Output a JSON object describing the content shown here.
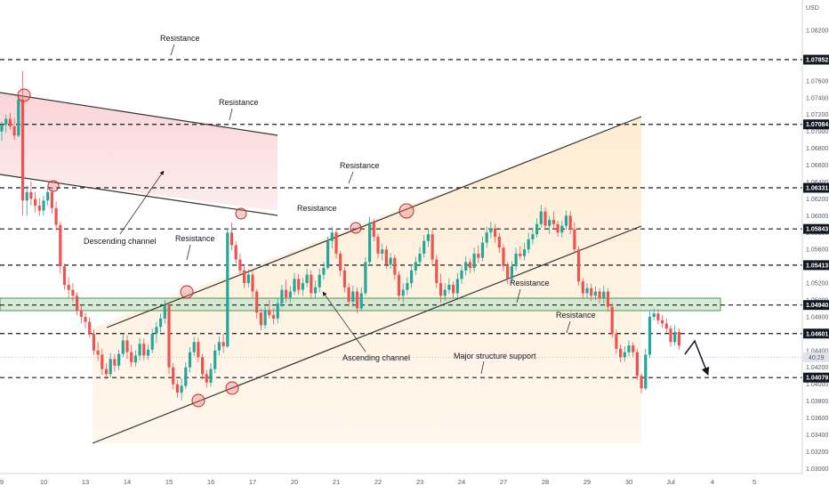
{
  "chart_data": {
    "type": "candlestick",
    "axis": {
      "currency": "USD",
      "y_ticks": [
        "1.08200",
        "1.07600",
        "1.07400",
        "1.07200",
        "1.07000",
        "1.06800",
        "1.06600",
        "1.06400",
        "1.06200",
        "1.06000",
        "1.05800",
        "1.05600",
        "1.05400",
        "1.05200",
        "1.05000",
        "1.04800",
        "1.04400",
        "1.04200",
        "1.04000",
        "1.03800",
        "1.03600",
        "1.03400",
        "1.03200",
        "1.03000"
      ],
      "y_tick_values": [
        1.082,
        1.076,
        1.074,
        1.072,
        1.07,
        1.068,
        1.066,
        1.064,
        1.062,
        1.06,
        1.058,
        1.056,
        1.054,
        1.052,
        1.05,
        1.048,
        1.044,
        1.042,
        1.04,
        1.038,
        1.036,
        1.034,
        1.032,
        1.03
      ],
      "ylim": [
        1.0294,
        1.0856
      ],
      "x_ticks": [
        "9",
        "10",
        "13",
        "14",
        "15",
        "16",
        "17",
        "20",
        "21",
        "22",
        "23",
        "24",
        "27",
        "28",
        "29",
        "30",
        "Jul",
        "4",
        "5"
      ],
      "x_tick_index": [
        0,
        10,
        20,
        30,
        40,
        50,
        60,
        70,
        80,
        90,
        100,
        110,
        120,
        130,
        140,
        150,
        160,
        170,
        180
      ],
      "index_range": [
        0,
        196
      ],
      "grid": false
    },
    "level_boxes": [
      {
        "label": "1.07852",
        "value": 1.07852
      },
      {
        "label": "1.07084",
        "value": 1.07084
      },
      {
        "label": "1.06331",
        "value": 1.06331
      },
      {
        "label": "1.05843",
        "value": 1.05843
      },
      {
        "label": "1.05413",
        "value": 1.05413
      },
      {
        "label": "1.04940",
        "value": 1.0494
      },
      {
        "label": "1.04601",
        "value": 1.04601
      },
      {
        "label": "1.04079",
        "value": 1.04079
      }
    ],
    "countdown": "40:29",
    "current_price": 1.0432,
    "support_zone": [
      1.0487,
      1.0503
    ],
    "annotations": [
      {
        "text": "Resistance",
        "value": 1.0818,
        "index": 40
      },
      {
        "text": "Resistance",
        "value": 1.073,
        "index": 56
      },
      {
        "text": "Resistance",
        "value": 1.0655,
        "index": 84
      },
      {
        "text": "Resistance",
        "value": 1.0604,
        "index": 74
      },
      {
        "text": "Resistance",
        "value": 1.0565,
        "index": 45
      },
      {
        "text": "Resistance",
        "value": 1.0518,
        "index": 127
      },
      {
        "text": "Resistance",
        "value": 1.0467,
        "index": 136
      },
      {
        "text": "Descending channel",
        "value": 1.0563,
        "index": 26
      },
      {
        "text": "Ascending channel",
        "value": 1.042,
        "index": 87
      },
      {
        "text": "Major structure support",
        "value": 1.0427,
        "index": 116
      }
    ],
    "candles": [
      [
        1.07,
        1.0712,
        1.0689,
        1.0708
      ],
      [
        1.0708,
        1.072,
        1.0698,
        1.0715
      ],
      [
        1.0715,
        1.0722,
        1.0702,
        1.0706
      ],
      [
        1.0706,
        1.0716,
        1.069,
        1.0695
      ],
      [
        1.0695,
        1.0742,
        1.0693,
        1.0738
      ],
      [
        1.0738,
        1.0772,
        1.06,
        1.0618
      ],
      [
        1.0618,
        1.0636,
        1.06,
        1.0628
      ],
      [
        1.0628,
        1.0641,
        1.0612,
        1.062
      ],
      [
        1.062,
        1.0628,
        1.0604,
        1.0612
      ],
      [
        1.0612,
        1.0621,
        1.06,
        1.0606
      ],
      [
        1.0606,
        1.0624,
        1.06,
        1.0618
      ],
      [
        1.0618,
        1.0635,
        1.0612,
        1.0628
      ],
      [
        1.0628,
        1.0634,
        1.0602,
        1.0609
      ],
      [
        1.0609,
        1.0617,
        1.0582,
        1.0589
      ],
      [
        1.0589,
        1.0593,
        1.0531,
        1.054
      ],
      [
        1.054,
        1.0543,
        1.0512,
        1.0518
      ],
      [
        1.0518,
        1.0527,
        1.0503,
        1.0512
      ],
      [
        1.0512,
        1.052,
        1.0498,
        1.0505
      ],
      [
        1.0505,
        1.0509,
        1.0482,
        1.0488
      ],
      [
        1.0488,
        1.0494,
        1.0472,
        1.048
      ],
      [
        1.048,
        1.0485,
        1.0466,
        1.0474
      ],
      [
        1.0474,
        1.048,
        1.0455,
        1.046
      ],
      [
        1.046,
        1.0465,
        1.0435,
        1.044
      ],
      [
        1.044,
        1.045,
        1.0428,
        1.0435
      ],
      [
        1.0435,
        1.0442,
        1.0411,
        1.0418
      ],
      [
        1.0418,
        1.0425,
        1.0406,
        1.0412
      ],
      [
        1.0412,
        1.0437,
        1.0408,
        1.043
      ],
      [
        1.043,
        1.0436,
        1.0415,
        1.0422
      ],
      [
        1.0422,
        1.0441,
        1.0417,
        1.0436
      ],
      [
        1.0436,
        1.0459,
        1.0432,
        1.0452
      ],
      [
        1.0452,
        1.0458,
        1.043,
        1.0438
      ],
      [
        1.0438,
        1.0447,
        1.042,
        1.0426
      ],
      [
        1.0426,
        1.044,
        1.0421,
        1.0434
      ],
      [
        1.0434,
        1.0455,
        1.0428,
        1.0448
      ],
      [
        1.0448,
        1.0454,
        1.0428,
        1.0434
      ],
      [
        1.0434,
        1.0447,
        1.0429,
        1.0441
      ],
      [
        1.0441,
        1.0466,
        1.0437,
        1.046
      ],
      [
        1.046,
        1.0474,
        1.0449,
        1.0468
      ],
      [
        1.0468,
        1.0484,
        1.0462,
        1.0478
      ],
      [
        1.0478,
        1.05,
        1.0472,
        1.0494
      ],
      [
        1.0494,
        1.0497,
        1.0412,
        1.042
      ],
      [
        1.042,
        1.0425,
        1.0394,
        1.04
      ],
      [
        1.04,
        1.0405,
        1.0384,
        1.039
      ],
      [
        1.039,
        1.0407,
        1.0381,
        1.0398
      ],
      [
        1.0398,
        1.0426,
        1.0394,
        1.042
      ],
      [
        1.042,
        1.0444,
        1.0414,
        1.0438
      ],
      [
        1.0438,
        1.0456,
        1.0433,
        1.045
      ],
      [
        1.045,
        1.0455,
        1.0426,
        1.0432
      ],
      [
        1.0432,
        1.0436,
        1.0406,
        1.0412
      ],
      [
        1.0412,
        1.0417,
        1.0396,
        1.0402
      ],
      [
        1.0402,
        1.0425,
        1.0397,
        1.0418
      ],
      [
        1.0418,
        1.0447,
        1.0413,
        1.044
      ],
      [
        1.044,
        1.0457,
        1.0434,
        1.045
      ],
      [
        1.045,
        1.046,
        1.0437,
        1.0445
      ],
      [
        1.0445,
        1.0585,
        1.0443,
        1.058
      ],
      [
        1.058,
        1.0592,
        1.0559,
        1.0565
      ],
      [
        1.0565,
        1.057,
        1.0543,
        1.0548
      ],
      [
        1.0548,
        1.0555,
        1.0529,
        1.0535
      ],
      [
        1.0535,
        1.0541,
        1.0514,
        1.052
      ],
      [
        1.052,
        1.0536,
        1.0515,
        1.053
      ],
      [
        1.053,
        1.0535,
        1.0503,
        1.051
      ],
      [
        1.051,
        1.0513,
        1.0478,
        1.0485
      ],
      [
        1.0485,
        1.049,
        1.0464,
        1.047
      ],
      [
        1.047,
        1.0493,
        1.0466,
        1.0488
      ],
      [
        1.0488,
        1.05,
        1.0478,
        1.0482
      ],
      [
        1.0482,
        1.049,
        1.0471,
        1.0478
      ],
      [
        1.0478,
        1.0503,
        1.0472,
        1.0496
      ],
      [
        1.0496,
        1.0518,
        1.0491,
        1.0512
      ],
      [
        1.0512,
        1.0524,
        1.0497,
        1.0503
      ],
      [
        1.0503,
        1.0517,
        1.0496,
        1.051
      ],
      [
        1.051,
        1.0532,
        1.0506,
        1.0525
      ],
      [
        1.0525,
        1.0531,
        1.0506,
        1.0512
      ],
      [
        1.0512,
        1.0526,
        1.0505,
        1.052
      ],
      [
        1.052,
        1.0537,
        1.0515,
        1.053
      ],
      [
        1.053,
        1.0535,
        1.0501,
        1.0508
      ],
      [
        1.0508,
        1.0523,
        1.0502,
        1.0515
      ],
      [
        1.0515,
        1.0537,
        1.0509,
        1.053
      ],
      [
        1.053,
        1.0545,
        1.0524,
        1.0538
      ],
      [
        1.0538,
        1.0575,
        1.0536,
        1.057
      ],
      [
        1.057,
        1.0587,
        1.0561,
        1.058
      ],
      [
        1.058,
        1.0585,
        1.0549,
        1.0555
      ],
      [
        1.0555,
        1.0558,
        1.0528,
        1.0535
      ],
      [
        1.0535,
        1.0539,
        1.0509,
        1.0515
      ],
      [
        1.0515,
        1.052,
        1.0492,
        1.0498
      ],
      [
        1.0498,
        1.0517,
        1.0492,
        1.051
      ],
      [
        1.051,
        1.0515,
        1.0484,
        1.049
      ],
      [
        1.049,
        1.0515,
        1.0487,
        1.0508
      ],
      [
        1.0508,
        1.0551,
        1.0505,
        1.0545
      ],
      [
        1.0545,
        1.0599,
        1.0541,
        1.0592
      ],
      [
        1.0592,
        1.0596,
        1.057,
        1.0575
      ],
      [
        1.0575,
        1.0579,
        1.0549,
        1.0555
      ],
      [
        1.0555,
        1.0567,
        1.0547,
        1.056
      ],
      [
        1.056,
        1.0564,
        1.0537,
        1.0542
      ],
      [
        1.0542,
        1.0556,
        1.0537,
        1.055
      ],
      [
        1.055,
        1.0554,
        1.0524,
        1.053
      ],
      [
        1.053,
        1.0534,
        1.0499,
        1.0505
      ],
      [
        1.0505,
        1.052,
        1.0496,
        1.0512
      ],
      [
        1.0512,
        1.0527,
        1.0506,
        1.052
      ],
      [
        1.052,
        1.0542,
        1.0514,
        1.0535
      ],
      [
        1.0535,
        1.0551,
        1.053,
        1.0545
      ],
      [
        1.0545,
        1.0563,
        1.054,
        1.0555
      ],
      [
        1.0555,
        1.0577,
        1.055,
        1.057
      ],
      [
        1.057,
        1.0585,
        1.0563,
        1.0578
      ],
      [
        1.0578,
        1.0583,
        1.0542,
        1.0548
      ],
      [
        1.0548,
        1.0554,
        1.0514,
        1.052
      ],
      [
        1.052,
        1.0531,
        1.0497,
        1.0505
      ],
      [
        1.0505,
        1.052,
        1.0499,
        1.0512
      ],
      [
        1.0512,
        1.0526,
        1.0507,
        1.0518
      ],
      [
        1.0518,
        1.0522,
        1.0502,
        1.0508
      ],
      [
        1.0508,
        1.0532,
        1.0502,
        1.0525
      ],
      [
        1.0525,
        1.0542,
        1.0519,
        1.0535
      ],
      [
        1.0535,
        1.0552,
        1.0529,
        1.0545
      ],
      [
        1.0545,
        1.0549,
        1.0532,
        1.0538
      ],
      [
        1.0538,
        1.0562,
        1.0533,
        1.0555
      ],
      [
        1.0555,
        1.0565,
        1.0544,
        1.055
      ],
      [
        1.055,
        1.0575,
        1.0546,
        1.0568
      ],
      [
        1.0568,
        1.0587,
        1.0562,
        1.058
      ],
      [
        1.058,
        1.0593,
        1.0573,
        1.0585
      ],
      [
        1.0585,
        1.059,
        1.0568,
        1.0575
      ],
      [
        1.0575,
        1.058,
        1.0556,
        1.0562
      ],
      [
        1.0562,
        1.0566,
        1.0534,
        1.054
      ],
      [
        1.054,
        1.0545,
        1.0519,
        1.0525
      ],
      [
        1.0525,
        1.0546,
        1.052,
        1.054
      ],
      [
        1.054,
        1.0562,
        1.0535,
        1.0555
      ],
      [
        1.0555,
        1.0564,
        1.0548,
        1.0552
      ],
      [
        1.0552,
        1.0568,
        1.0547,
        1.056
      ],
      [
        1.056,
        1.058,
        1.0555,
        1.0572
      ],
      [
        1.0572,
        1.0586,
        1.0566,
        1.0578
      ],
      [
        1.0578,
        1.0597,
        1.0574,
        1.059
      ],
      [
        1.059,
        1.0613,
        1.0586,
        1.0605
      ],
      [
        1.0605,
        1.061,
        1.0583,
        1.0588
      ],
      [
        1.0588,
        1.06,
        1.0578,
        1.0595
      ],
      [
        1.0595,
        1.0605,
        1.0584,
        1.059
      ],
      [
        1.059,
        1.0594,
        1.0575,
        1.058
      ],
      [
        1.058,
        1.0594,
        1.0574,
        1.0588
      ],
      [
        1.0588,
        1.0606,
        1.0583,
        1.06
      ],
      [
        1.06,
        1.0605,
        1.0578,
        1.0584
      ],
      [
        1.0584,
        1.0592,
        1.0555,
        1.056
      ],
      [
        1.056,
        1.0564,
        1.0517,
        1.0522
      ],
      [
        1.0522,
        1.0526,
        1.0501,
        1.0508
      ],
      [
        1.0508,
        1.052,
        1.0502,
        1.0514
      ],
      [
        1.0514,
        1.0519,
        1.0499,
        1.0505
      ],
      [
        1.0505,
        1.0516,
        1.05,
        1.051
      ],
      [
        1.051,
        1.0514,
        1.0496,
        1.0502
      ],
      [
        1.0502,
        1.0517,
        1.0496,
        1.051
      ],
      [
        1.051,
        1.0514,
        1.0486,
        1.0492
      ],
      [
        1.0492,
        1.0496,
        1.0455,
        1.046
      ],
      [
        1.046,
        1.0465,
        1.0436,
        1.0442
      ],
      [
        1.0442,
        1.0447,
        1.0426,
        1.0432
      ],
      [
        1.0432,
        1.0445,
        1.0427,
        1.0438
      ],
      [
        1.0438,
        1.0452,
        1.0433,
        1.0446
      ],
      [
        1.0446,
        1.045,
        1.0432,
        1.0438
      ],
      [
        1.0438,
        1.0442,
        1.0405,
        1.041
      ],
      [
        1.041,
        1.0413,
        1.0389,
        1.0395
      ],
      [
        1.0395,
        1.0442,
        1.0393,
        1.0435
      ],
      [
        1.0435,
        1.0488,
        1.0431,
        1.048
      ],
      [
        1.048,
        1.049,
        1.0476,
        1.0484
      ],
      [
        1.0484,
        1.0489,
        1.0471,
        1.0476
      ],
      [
        1.0476,
        1.0482,
        1.0467,
        1.0472
      ],
      [
        1.0472,
        1.0478,
        1.0461,
        1.0466
      ],
      [
        1.0466,
        1.047,
        1.0445,
        1.045
      ],
      [
        1.045,
        1.047,
        1.0446,
        1.0462
      ],
      [
        1.0462,
        1.0466,
        1.0441,
        1.0446
      ]
    ]
  },
  "chart": {
    "currency": "USD",
    "countdown": "40:29",
    "annotations": [
      {
        "text": "Resistance"
      },
      {
        "text": "Resistance"
      },
      {
        "text": "Resistance"
      },
      {
        "text": "Resistance"
      },
      {
        "text": "Resistance"
      },
      {
        "text": "Resistance"
      },
      {
        "text": "Resistance"
      },
      {
        "text": "Descending channel"
      },
      {
        "text": "Ascending channel"
      },
      {
        "text": "Major structure support"
      }
    ]
  },
  "colors": {
    "up": "#26a69a",
    "down": "#ef5350",
    "level": "#131722",
    "axis_bg": "#ffffff",
    "descending_fill": "#f8c9cc",
    "ascending_fill": "#fde6c4",
    "zone_fill": "#c8e6c9",
    "zone_stroke": "#2e7d32",
    "circle": "#e57373",
    "arrow": "#131722"
  }
}
